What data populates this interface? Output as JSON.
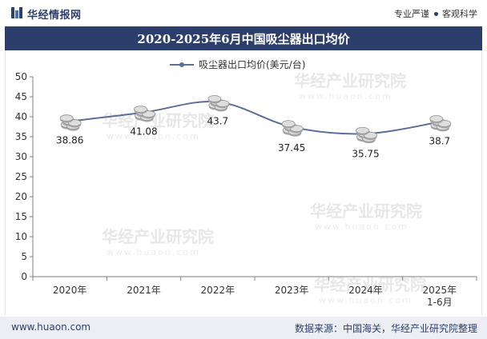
{
  "header": {
    "logo_text": "华经情报网",
    "tag1": "专业严谨",
    "tag2": "客观科学"
  },
  "title": "2020-2025年6月中国吸尘器出口均价",
  "chart_data": {
    "type": "line",
    "categories": [
      "2020年",
      "2021年",
      "2022年",
      "2023年",
      "2024年",
      "2025年\n1-6月"
    ],
    "series": [
      {
        "name": "吸尘器出口均价(美元/台)",
        "values": [
          38.86,
          41.08,
          43.7,
          37.45,
          35.75,
          38.7
        ]
      }
    ],
    "data_labels": [
      "38.86",
      "41.08",
      "43.7",
      "37.45",
      "35.75",
      "38.7"
    ],
    "ylim": [
      0,
      50
    ],
    "yticks": [
      "0",
      "5",
      "10",
      "15",
      "20",
      "25",
      "30",
      "35",
      "40",
      "45",
      "50"
    ],
    "smooth": true,
    "legend_position": "top-center",
    "grid": false,
    "colors": {
      "line": "#5b6e9a",
      "marker": "#cfcfcf"
    }
  },
  "watermarks": [
    "华经产业研究院",
    "www.huaon.com"
  ],
  "footer": {
    "website": "www.huaon.com",
    "source": "数据来源：中国海关，华经产业研究院整理"
  },
  "colors": {
    "brand": "#2c3e6b",
    "footer_bg": "#eceef3"
  }
}
